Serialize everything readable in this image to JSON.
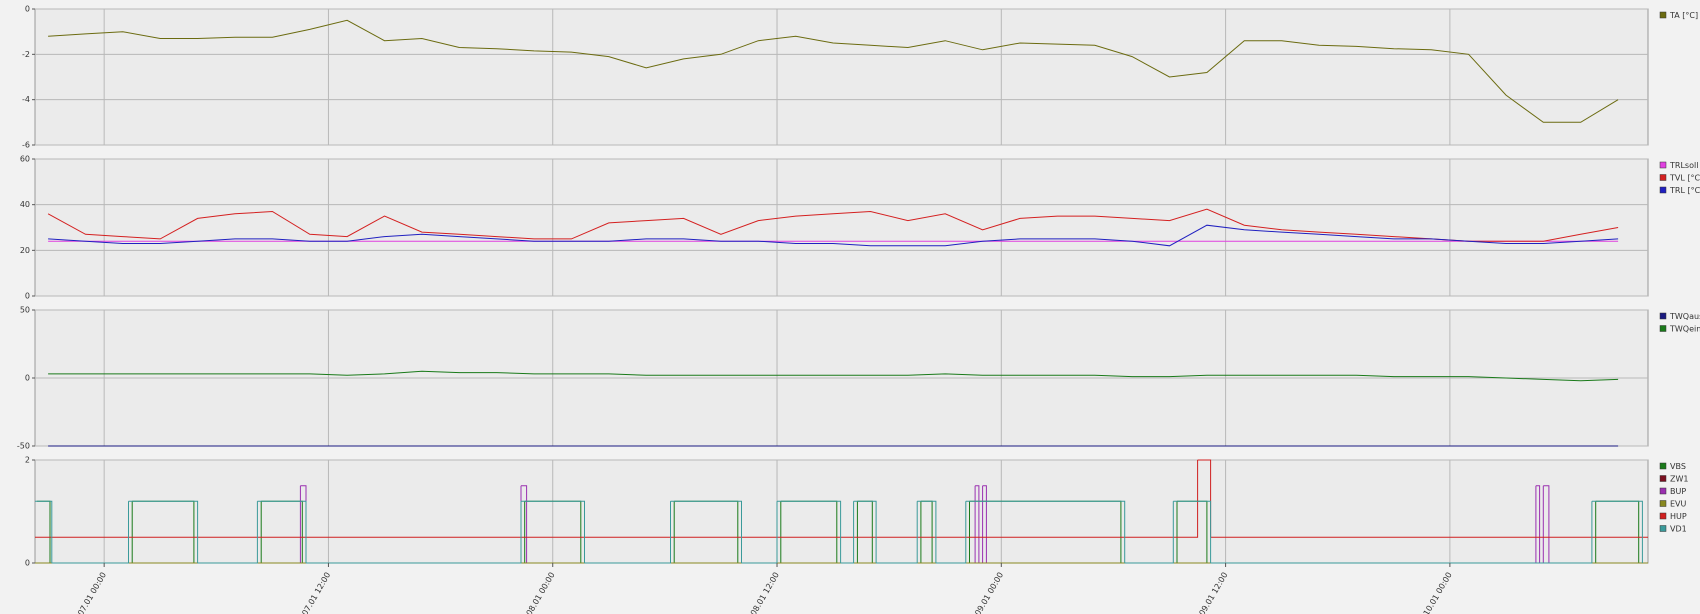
{
  "chart_data": [
    {
      "type": "line",
      "xlim": [
        -3.7,
        82.6
      ],
      "ylim": [
        -6,
        0
      ],
      "yticks": [
        -6,
        -4,
        -2,
        0
      ],
      "grid": true,
      "x": [
        -3,
        -1,
        1,
        3,
        5,
        7,
        9,
        11,
        13,
        15,
        17,
        19,
        21,
        23,
        25,
        27,
        29,
        31,
        33,
        35,
        37,
        39,
        41,
        43,
        45,
        47,
        49,
        51,
        53,
        55,
        57,
        59,
        61,
        63,
        65,
        67,
        69,
        71,
        73,
        75,
        77,
        79,
        81
      ],
      "series": [
        {
          "name": "TA [°C]",
          "color": "#6b6b10",
          "values": [
            -1.2,
            -1.1,
            -1.0,
            -1.3,
            -1.3,
            -1.25,
            -1.25,
            -0.9,
            -0.5,
            -1.4,
            -1.3,
            -1.7,
            -1.75,
            -1.85,
            -1.9,
            -2.1,
            -2.6,
            -2.2,
            -2.0,
            -1.4,
            -1.2,
            -1.5,
            -1.6,
            -1.7,
            -1.4,
            -1.8,
            -1.5,
            -1.55,
            -1.6,
            -2.1,
            -3.0,
            -2.8,
            -1.4,
            -1.4,
            -1.6,
            -1.65,
            -1.75,
            -1.8,
            -2.0,
            -3.8,
            -5.0,
            -5.0,
            -4.0
          ]
        }
      ]
    },
    {
      "type": "line",
      "xlim": [
        -3.7,
        82.6
      ],
      "ylim": [
        0,
        60
      ],
      "yticks": [
        0,
        20,
        40,
        60
      ],
      "grid": true,
      "x": [
        -3,
        -1,
        1,
        3,
        5,
        7,
        9,
        11,
        13,
        15,
        17,
        19,
        21,
        23,
        25,
        27,
        29,
        31,
        33,
        35,
        37,
        39,
        41,
        43,
        45,
        47,
        49,
        51,
        53,
        55,
        57,
        59,
        61,
        63,
        65,
        67,
        69,
        71,
        73,
        75,
        77,
        79,
        81
      ],
      "series": [
        {
          "name": "TRLsoll [°",
          "color": "#e040e0",
          "values": [
            24,
            24,
            24,
            24,
            24,
            24,
            24,
            24,
            24,
            24,
            24,
            24,
            24,
            24,
            24,
            24,
            24,
            24,
            24,
            24,
            24,
            24,
            24,
            24,
            24,
            24,
            24,
            24,
            24,
            24,
            24,
            24,
            24,
            24,
            24,
            24,
            24,
            24,
            24,
            24,
            24,
            24,
            24
          ]
        },
        {
          "name": "TVL [°C]",
          "color": "#d42020",
          "values": [
            36,
            27,
            26,
            25,
            34,
            36,
            37,
            27,
            26,
            35,
            28,
            27,
            26,
            25,
            25,
            32,
            33,
            34,
            27,
            33,
            35,
            36,
            37,
            33,
            36,
            29,
            34,
            35,
            35,
            34,
            33,
            38,
            31,
            29,
            28,
            27,
            26,
            25,
            24,
            24,
            24,
            27,
            30
          ]
        },
        {
          "name": "TRL [°C]",
          "color": "#2020c0",
          "values": [
            25,
            24,
            23,
            23,
            24,
            25,
            25,
            24,
            24,
            26,
            27,
            26,
            25,
            24,
            24,
            24,
            25,
            25,
            24,
            24,
            23,
            23,
            22,
            22,
            22,
            24,
            25,
            25,
            25,
            24,
            22,
            31,
            29,
            28,
            27,
            26,
            25,
            25,
            24,
            23,
            23,
            24,
            25
          ]
        }
      ]
    },
    {
      "type": "line",
      "xlim": [
        -3.7,
        82.6
      ],
      "ylim": [
        -50,
        50
      ],
      "yticks": [
        -50,
        0,
        50
      ],
      "grid": true,
      "x": [
        -3,
        -1,
        1,
        3,
        5,
        7,
        9,
        11,
        13,
        15,
        17,
        19,
        21,
        23,
        25,
        27,
        29,
        31,
        33,
        35,
        37,
        39,
        41,
        43,
        45,
        47,
        49,
        51,
        53,
        55,
        57,
        59,
        61,
        63,
        65,
        67,
        69,
        71,
        73,
        75,
        77,
        79,
        81
      ],
      "series": [
        {
          "name": "TWQaus [",
          "color": "#1a1a80",
          "values": [
            -50,
            -50,
            -50,
            -50,
            -50,
            -50,
            -50,
            -50,
            -50,
            -50,
            -50,
            -50,
            -50,
            -50,
            -50,
            -50,
            -50,
            -50,
            -50,
            -50,
            -50,
            -50,
            -50,
            -50,
            -50,
            -50,
            -50,
            -50,
            -50,
            -50,
            -50,
            -50,
            -50,
            -50,
            -50,
            -50,
            -50,
            -50,
            -50,
            -50,
            -50,
            -50,
            -50
          ]
        },
        {
          "name": "TWQein [°",
          "color": "#1a7a1a",
          "values": [
            3,
            3,
            3,
            3,
            3,
            3,
            3,
            3,
            2,
            3,
            5,
            4,
            4,
            3,
            3,
            3,
            2,
            2,
            2,
            2,
            2,
            2,
            2,
            2,
            3,
            2,
            2,
            2,
            2,
            1,
            1,
            2,
            2,
            2,
            2,
            2,
            1,
            1,
            1,
            0,
            -1,
            -2,
            -1
          ]
        }
      ]
    },
    {
      "type": "step",
      "xlim": [
        -3.7,
        82.6
      ],
      "ylim": [
        0,
        2
      ],
      "yticks": [
        0,
        2
      ],
      "grid": true,
      "xticks": [
        {
          "value": 0,
          "label": "07.01 00:00"
        },
        {
          "value": 12,
          "label": "07.01 12:00"
        },
        {
          "value": 24,
          "label": "08.01 00:00"
        },
        {
          "value": 36,
          "label": "08.01 12:00"
        },
        {
          "value": 48,
          "label": "09.01 00:00"
        },
        {
          "value": 60,
          "label": "09.01 12:00"
        },
        {
          "value": 72,
          "label": "10.01 00:00"
        }
      ],
      "series": [
        {
          "name": "VBS",
          "color": "#1a7a1a",
          "x": [
            -3.6,
            -2.9,
            1.5,
            4.8,
            8.4,
            10.6,
            22.5,
            25.5,
            30.5,
            33.9,
            36.2,
            39.2,
            40.3,
            41.1,
            43.7,
            44.3,
            46.3,
            54.4,
            57.4,
            59.0,
            79.8,
            82.1
          ],
          "values": [
            1.2,
            0,
            1.2,
            0,
            1.2,
            0,
            1.2,
            0,
            1.2,
            0,
            1.2,
            0,
            1.2,
            0,
            1.2,
            0,
            1.2,
            0,
            1.2,
            0,
            1.2,
            0
          ]
        },
        {
          "name": "ZW1",
          "color": "#7a1020",
          "x": [
            -3.7,
            82.6
          ],
          "values": [
            0,
            0
          ]
        },
        {
          "name": "BUP",
          "color": "#9a30b0",
          "x": [
            -3.7,
            10.5,
            10.8,
            22.3,
            22.6,
            46.6,
            46.8,
            47.0,
            47.2,
            76.6,
            76.8,
            77.0,
            77.3
          ],
          "values": [
            0,
            1.5,
            0,
            1.5,
            0,
            1.5,
            0,
            1.5,
            0,
            1.5,
            0,
            1.5,
            0
          ]
        },
        {
          "name": "EVU",
          "color": "#888820",
          "x": [
            -3.7,
            82.6
          ],
          "values": [
            0,
            0
          ]
        },
        {
          "name": "HUP",
          "color": "#d02020",
          "x": [
            -3.7,
            58.5,
            59.2,
            82.6
          ],
          "values": [
            0.5,
            2,
            0.5,
            0.5
          ]
        },
        {
          "name": "VD1",
          "color": "#3a9a9a",
          "x": [
            -3.7,
            -2.8,
            1.3,
            5.0,
            8.2,
            10.8,
            22.3,
            25.7,
            30.3,
            34.1,
            36.0,
            39.4,
            40.1,
            41.3,
            43.5,
            44.5,
            46.1,
            54.6,
            57.2,
            59.2,
            79.6,
            82.3
          ],
          "values": [
            1.2,
            0,
            1.2,
            0,
            1.2,
            0,
            1.2,
            0,
            1.2,
            0,
            1.2,
            0,
            1.2,
            0,
            1.2,
            0,
            1.2,
            0,
            1.2,
            0,
            1.2,
            0
          ]
        }
      ]
    }
  ]
}
